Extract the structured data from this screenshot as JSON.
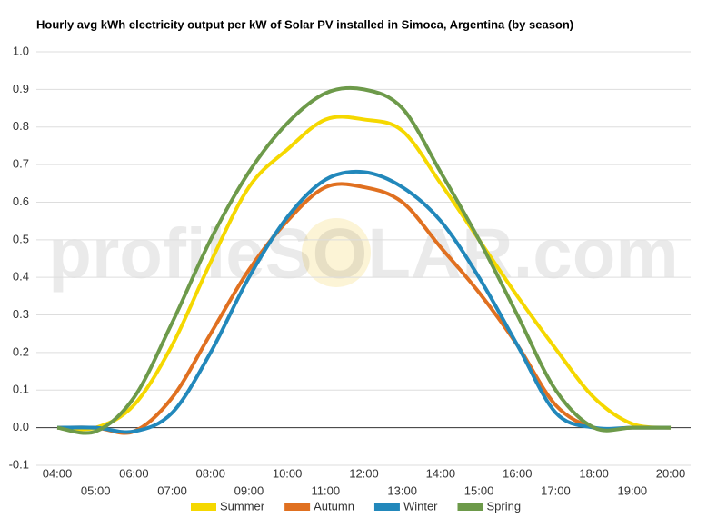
{
  "chart_data": {
    "type": "line",
    "title": "Hourly avg kWh electricity output per kW of Solar PV installed in Simoca, Argentina (by season)",
    "watermark": "profileSOLAR.com",
    "categories": [
      "04:00",
      "05:00",
      "06:00",
      "07:00",
      "08:00",
      "09:00",
      "10:00",
      "11:00",
      "12:00",
      "13:00",
      "14:00",
      "15:00",
      "16:00",
      "17:00",
      "18:00",
      "19:00",
      "20:00"
    ],
    "series": [
      {
        "name": "Summer",
        "color": "#f5d800",
        "values": [
          0,
          0,
          0.06,
          0.22,
          0.44,
          0.64,
          0.74,
          0.82,
          0.82,
          0.79,
          0.65,
          0.5,
          0.35,
          0.21,
          0.08,
          0.01,
          0
        ]
      },
      {
        "name": "Autumn",
        "color": "#e07020",
        "values": [
          0,
          0,
          -0.01,
          0.08,
          0.25,
          0.42,
          0.55,
          0.64,
          0.64,
          0.6,
          0.48,
          0.36,
          0.22,
          0.06,
          0,
          0,
          0
        ]
      },
      {
        "name": "Winter",
        "color": "#2288bb",
        "values": [
          0,
          0,
          -0.01,
          0.04,
          0.2,
          0.4,
          0.56,
          0.66,
          0.68,
          0.64,
          0.55,
          0.4,
          0.22,
          0.04,
          0,
          0,
          0
        ]
      },
      {
        "name": "Spring",
        "color": "#6d9a4a",
        "values": [
          0,
          -0.01,
          0.08,
          0.28,
          0.5,
          0.68,
          0.81,
          0.89,
          0.9,
          0.85,
          0.68,
          0.5,
          0.3,
          0.1,
          0,
          0,
          0
        ]
      }
    ],
    "ylim": [
      -0.1,
      1.0
    ],
    "yticks": [
      {
        "value": -0.1,
        "label": "-0.1"
      },
      {
        "value": 0,
        "label": "0.0"
      },
      0.1,
      0.2,
      0.3,
      0.4,
      0.5,
      0.6,
      0.7,
      0.8,
      0.9,
      {
        "value": 1,
        "label": "1.0"
      }
    ],
    "grid": true,
    "legend": "bottom"
  }
}
